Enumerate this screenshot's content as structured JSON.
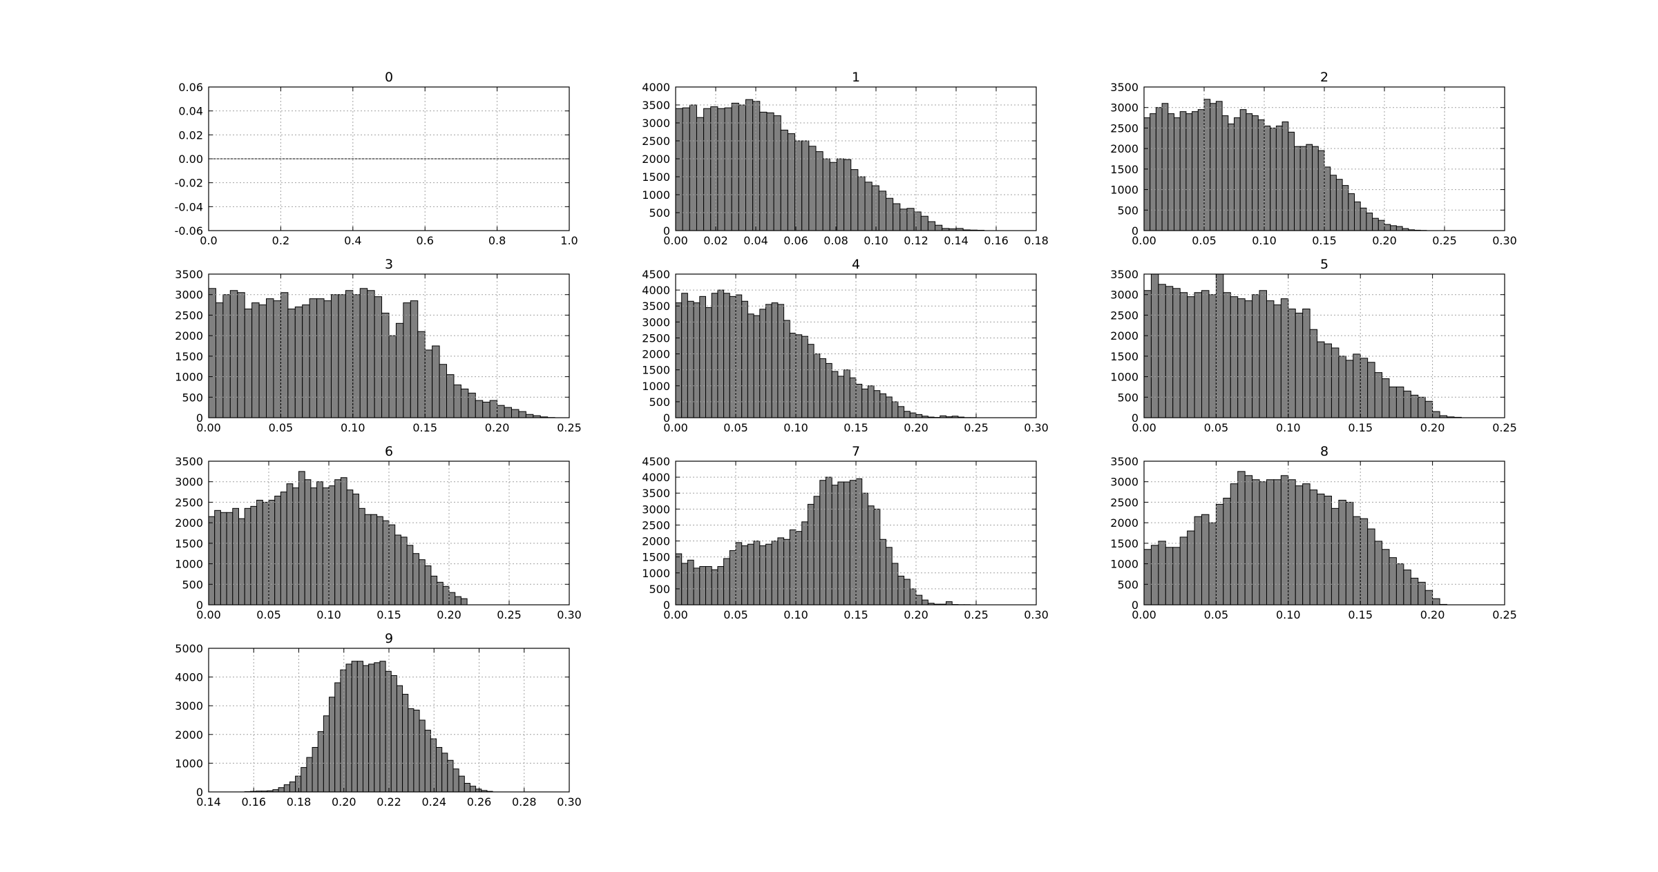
{
  "figure": {
    "background": "#ffffff",
    "bar_color": "#808080",
    "bar_edge": "#000000",
    "grid_color": "#a0a0a0"
  },
  "chart_data": [
    {
      "type": "bar",
      "title": "0",
      "xlabel": "",
      "ylabel": "",
      "grid": true,
      "xlim": [
        0,
        1
      ],
      "ylim": [
        -0.06,
        0.06
      ],
      "xticks": [
        "0.0",
        "0.2",
        "0.4",
        "0.6",
        "0.8",
        "1.0"
      ],
      "yticks": [
        "-0.06",
        "-0.04",
        "-0.02",
        "0.00",
        "0.02",
        "0.04",
        "0.06"
      ],
      "x_start": 0,
      "bin_width": 0.02,
      "values": [
        0,
        0,
        0,
        0,
        0,
        0,
        0,
        0,
        0,
        0,
        0,
        0,
        0,
        0,
        0,
        0,
        0,
        0,
        0,
        0,
        0,
        0,
        0,
        0,
        0,
        0,
        0,
        0,
        0,
        0,
        0,
        0,
        0,
        0,
        0,
        0,
        0,
        0,
        0,
        0,
        0,
        0,
        0,
        0,
        0,
        0,
        0,
        0,
        0,
        0
      ]
    },
    {
      "type": "bar",
      "title": "1",
      "xlabel": "",
      "ylabel": "",
      "grid": true,
      "xlim": [
        0,
        0.18
      ],
      "ylim": [
        0,
        4000
      ],
      "xticks": [
        "0.00",
        "0.02",
        "0.04",
        "0.06",
        "0.08",
        "0.10",
        "0.12",
        "0.14",
        "0.16",
        "0.18"
      ],
      "yticks": [
        "0",
        "500",
        "1000",
        "1500",
        "2000",
        "2500",
        "3000",
        "3500",
        "4000"
      ],
      "x_start": 0,
      "bin_width": 0.0035,
      "values": [
        3400,
        3420,
        3500,
        3150,
        3400,
        3450,
        3400,
        3420,
        3550,
        3500,
        3650,
        3600,
        3300,
        3280,
        3200,
        2800,
        2700,
        2500,
        2500,
        2350,
        2200,
        2000,
        1900,
        2000,
        1980,
        1700,
        1500,
        1350,
        1250,
        1100,
        900,
        750,
        600,
        620,
        520,
        400,
        250,
        150,
        60,
        50,
        60,
        20,
        15,
        10
      ]
    },
    {
      "type": "bar",
      "title": "2",
      "xlabel": "",
      "ylabel": "",
      "grid": true,
      "xlim": [
        0,
        0.3
      ],
      "ylim": [
        0,
        3500
      ],
      "xticks": [
        "0.00",
        "0.05",
        "0.10",
        "0.15",
        "0.20",
        "0.25",
        "0.30"
      ],
      "yticks": [
        "0",
        "500",
        "1000",
        "1500",
        "2000",
        "2500",
        "3000",
        "3500"
      ],
      "x_start": 0,
      "bin_width": 0.005,
      "values": [
        2750,
        2850,
        3000,
        3100,
        2850,
        2750,
        2900,
        2850,
        2900,
        2950,
        3200,
        3100,
        3150,
        2800,
        2600,
        2750,
        2950,
        2850,
        2800,
        2700,
        2550,
        2500,
        2550,
        2650,
        2400,
        2050,
        2050,
        2100,
        2050,
        1950,
        1550,
        1350,
        1250,
        1100,
        900,
        700,
        550,
        430,
        300,
        250,
        150,
        120,
        100,
        50,
        20,
        10,
        5
      ]
    },
    {
      "type": "bar",
      "title": "3",
      "xlabel": "",
      "ylabel": "",
      "grid": true,
      "xlim": [
        0,
        0.25
      ],
      "ylim": [
        0,
        3500
      ],
      "xticks": [
        "0.00",
        "0.05",
        "0.10",
        "0.15",
        "0.20",
        "0.25"
      ],
      "yticks": [
        "0",
        "500",
        "1000",
        "1500",
        "2000",
        "2500",
        "3000",
        "3500"
      ],
      "x_start": 0,
      "bin_width": 0.005,
      "values": [
        3150,
        2800,
        3000,
        3100,
        3050,
        2650,
        2800,
        2750,
        2900,
        2850,
        3050,
        2650,
        2700,
        2750,
        2900,
        2900,
        2850,
        3000,
        3000,
        3100,
        3000,
        3150,
        3100,
        2950,
        2550,
        2000,
        2300,
        2800,
        2850,
        2100,
        1650,
        1750,
        1300,
        1050,
        800,
        700,
        600,
        420,
        380,
        420,
        300,
        250,
        200,
        150,
        80,
        50,
        20,
        5
      ]
    },
    {
      "type": "bar",
      "title": "4",
      "xlabel": "",
      "ylabel": "",
      "grid": true,
      "xlim": [
        0,
        0.3
      ],
      "ylim": [
        0,
        4500
      ],
      "xticks": [
        "0.00",
        "0.05",
        "0.10",
        "0.15",
        "0.20",
        "0.25",
        "0.30"
      ],
      "yticks": [
        "0",
        "500",
        "1000",
        "1500",
        "2000",
        "2500",
        "3000",
        "3500",
        "4000",
        "4500"
      ],
      "x_start": 0,
      "bin_width": 0.005,
      "values": [
        3600,
        3900,
        3650,
        3600,
        3800,
        3450,
        3900,
        4000,
        3900,
        3800,
        3850,
        3650,
        3250,
        3200,
        3400,
        3550,
        3600,
        3550,
        3050,
        2650,
        2600,
        2550,
        2300,
        2000,
        1850,
        1700,
        1450,
        1300,
        1500,
        1250,
        1050,
        900,
        1000,
        850,
        750,
        650,
        500,
        350,
        200,
        150,
        100,
        50,
        20,
        10,
        60,
        30,
        50,
        20,
        5,
        5
      ]
    },
    {
      "type": "bar",
      "title": "5",
      "xlabel": "",
      "ylabel": "",
      "grid": true,
      "xlim": [
        0,
        0.25
      ],
      "ylim": [
        0,
        3500
      ],
      "xticks": [
        "0.00",
        "0.05",
        "0.10",
        "0.15",
        "0.20",
        "0.25"
      ],
      "yticks": [
        "0",
        "500",
        "1000",
        "1500",
        "2000",
        "2500",
        "3000",
        "3500"
      ],
      "x_start": 0,
      "bin_width": 0.005,
      "values": [
        3100,
        3500,
        3250,
        3200,
        3150,
        3050,
        2950,
        3050,
        3100,
        3000,
        3500,
        3050,
        2950,
        2900,
        2850,
        3000,
        3100,
        2850,
        2750,
        2900,
        2650,
        2550,
        2650,
        2150,
        1850,
        1800,
        1700,
        1500,
        1400,
        1550,
        1450,
        1350,
        1100,
        950,
        750,
        750,
        650,
        550,
        500,
        400,
        150,
        50,
        20,
        10
      ]
    },
    {
      "type": "bar",
      "title": "6",
      "xlabel": "",
      "ylabel": "",
      "grid": true,
      "xlim": [
        0,
        0.3
      ],
      "ylim": [
        0,
        3500
      ],
      "xticks": [
        "0.00",
        "0.05",
        "0.10",
        "0.15",
        "0.20",
        "0.25",
        "0.30"
      ],
      "yticks": [
        "0",
        "500",
        "1000",
        "1500",
        "2000",
        "2500",
        "3000",
        "3500"
      ],
      "x_start": 0,
      "bin_width": 0.005,
      "values": [
        2150,
        2300,
        2250,
        2250,
        2350,
        2100,
        2350,
        2400,
        2550,
        2500,
        2550,
        2650,
        2750,
        2950,
        2850,
        3250,
        3050,
        2850,
        3000,
        2850,
        2900,
        3050,
        3100,
        2800,
        2700,
        2350,
        2200,
        2200,
        2150,
        2050,
        1950,
        1700,
        1650,
        1450,
        1250,
        1100,
        950,
        700,
        550,
        450,
        300,
        200,
        150
      ]
    },
    {
      "type": "bar",
      "title": "7",
      "xlabel": "",
      "ylabel": "",
      "grid": true,
      "xlim": [
        0,
        0.3
      ],
      "ylim": [
        0,
        4500
      ],
      "xticks": [
        "0.00",
        "0.05",
        "0.10",
        "0.15",
        "0.20",
        "0.25",
        "0.30"
      ],
      "yticks": [
        "0",
        "500",
        "1000",
        "1500",
        "2000",
        "2500",
        "3000",
        "3500",
        "4000",
        "4500"
      ],
      "x_start": 0,
      "bin_width": 0.005,
      "values": [
        1600,
        1300,
        1400,
        1150,
        1200,
        1200,
        1100,
        1200,
        1450,
        1700,
        1950,
        1850,
        1900,
        2000,
        1850,
        1900,
        2000,
        2100,
        2050,
        2350,
        2300,
        2600,
        3150,
        3400,
        3900,
        4000,
        3750,
        3850,
        3850,
        3900,
        3950,
        3500,
        3100,
        3000,
        2050,
        1800,
        1300,
        900,
        800,
        500,
        300,
        150,
        50,
        20,
        20,
        100,
        10,
        5,
        5
      ]
    },
    {
      "type": "bar",
      "title": "8",
      "xlabel": "",
      "ylabel": "",
      "grid": true,
      "xlim": [
        0,
        0.25
      ],
      "ylim": [
        0,
        3500
      ],
      "xticks": [
        "0.00",
        "0.05",
        "0.10",
        "0.15",
        "0.20",
        "0.25"
      ],
      "yticks": [
        "0",
        "500",
        "1000",
        "1500",
        "2000",
        "2500",
        "3000",
        "3500"
      ],
      "x_start": 0,
      "bin_width": 0.005,
      "values": [
        1350,
        1450,
        1550,
        1400,
        1400,
        1650,
        1800,
        2150,
        2200,
        2000,
        2450,
        2600,
        2950,
        3250,
        3150,
        3050,
        3000,
        3050,
        3050,
        3150,
        3050,
        2900,
        2950,
        2800,
        2700,
        2650,
        2350,
        2550,
        2500,
        2150,
        2100,
        1850,
        1550,
        1350,
        1150,
        1000,
        850,
        650,
        550,
        350,
        150,
        10
      ]
    },
    {
      "type": "bar",
      "title": "9",
      "xlabel": "",
      "ylabel": "",
      "grid": true,
      "xlim": [
        0.14,
        0.3
      ],
      "ylim": [
        0,
        5000
      ],
      "xticks": [
        "0.14",
        "0.16",
        "0.18",
        "0.20",
        "0.22",
        "0.24",
        "0.26",
        "0.28",
        "0.30"
      ],
      "yticks": [
        "0",
        "1000",
        "2000",
        "3000",
        "4000",
        "5000"
      ],
      "x_start": 0.156,
      "bin_width": 0.0025,
      "values": [
        10,
        20,
        30,
        30,
        40,
        80,
        150,
        250,
        350,
        550,
        850,
        1200,
        1550,
        2100,
        2650,
        3300,
        3800,
        4250,
        4450,
        4550,
        4550,
        4400,
        4450,
        4500,
        4550,
        4200,
        4050,
        3700,
        3400,
        2900,
        2850,
        2500,
        2150,
        1850,
        1550,
        1350,
        1100,
        800,
        550,
        300,
        200,
        100,
        50,
        20
      ]
    }
  ]
}
